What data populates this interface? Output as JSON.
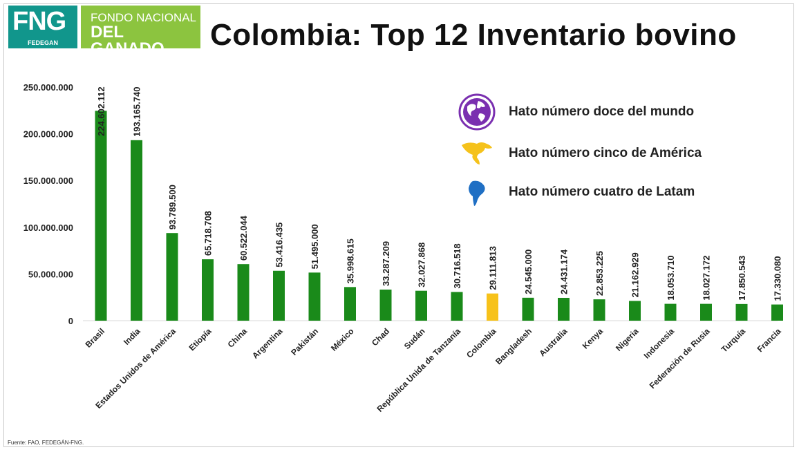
{
  "logo": {
    "fng_text": "FNG",
    "fedegan_text": "FEDEGAN",
    "fondo_line1": "FONDO NACIONAL",
    "fondo_line2": "DEL GANADO"
  },
  "title": "Colombia: Top 12 Inventario bovino",
  "source": "Fuente: FAO, FEDEGÁN-FNG.",
  "legend": [
    {
      "icon": "globe-icon",
      "text": "Hato número doce del mundo",
      "color": "#7a2fb0"
    },
    {
      "icon": "americas-map-icon",
      "text": "Hato número cinco de América",
      "color": "#f5c21b"
    },
    {
      "icon": "south-america-map-icon",
      "text": "Hato número cuatro de Latam",
      "color": "#1f6fc4"
    }
  ],
  "chart_data": {
    "type": "bar",
    "categories": [
      "Brasil",
      "India",
      "Estados Unidos de América",
      "Etiopía",
      "China",
      "Argentina",
      "Pakistán",
      "México",
      "Chad",
      "Sudán",
      "República Unida de Tanzanía",
      "Colombia",
      "Bangladesh",
      "Australia",
      "Kenya",
      "Nigeria",
      "Indonesia",
      "Federación de Rusia",
      "Turquía",
      "Francia"
    ],
    "values": [
      224602112,
      193165740,
      93789500,
      65718708,
      60522044,
      53416435,
      51495000,
      35998615,
      33287209,
      32027868,
      30716518,
      29111813,
      24545000,
      24431174,
      22853225,
      21162929,
      18053710,
      18027172,
      17850543,
      17330080
    ],
    "value_labels": [
      "224.602.112",
      "193.165.740",
      "93.789.500",
      "65.718.708",
      "60.522.044",
      "53.416.435",
      "51.495.000",
      "35.998.615",
      "33.287.209",
      "32.027.868",
      "30.716.518",
      "29.111.813",
      "24.545.000",
      "24.431.174",
      "22.853.225",
      "21.162.929",
      "18.053.710",
      "18.027.172",
      "17.850.543",
      "17.330.080"
    ],
    "highlight_category": "Colombia",
    "bar_color": "#1a8a1a",
    "highlight_color": "#f7c21a",
    "ylim": [
      0,
      250000000
    ],
    "yticks": [
      0,
      50000000,
      100000000,
      150000000,
      200000000,
      250000000
    ],
    "ytick_labels": [
      "0",
      "50.000.000",
      "100.000.000",
      "150.000.000",
      "200.000.000",
      "250.000.000"
    ],
    "xlabel": "",
    "ylabel": "",
    "grid": false,
    "legend_position": "top-right"
  }
}
